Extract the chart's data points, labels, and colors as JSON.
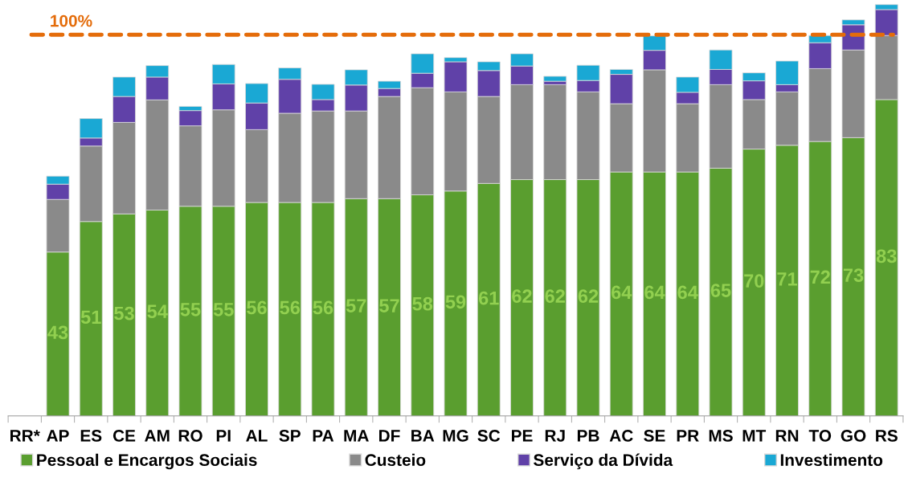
{
  "chart_data": {
    "type": "bar",
    "stacked": true,
    "categories": [
      "RR*",
      "AP",
      "ES",
      "CE",
      "AM",
      "RO",
      "PI",
      "AL",
      "SP",
      "PA",
      "MA",
      "DF",
      "BA",
      "MG",
      "SC",
      "PE",
      "RJ",
      "PB",
      "AC",
      "SE",
      "PR",
      "MS",
      "MT",
      "RN",
      "TO",
      "GO",
      "RS"
    ],
    "series": [
      {
        "name": "Pessoal e Encargos Sociais",
        "color": "#5a9e2f",
        "values": [
          null,
          43,
          51,
          53,
          54,
          55,
          55,
          56,
          56,
          56,
          57,
          57,
          58,
          59,
          61,
          62,
          62,
          62,
          64,
          64,
          64,
          65,
          70,
          71,
          72,
          73,
          83
        ],
        "value_labels": [
          null,
          "43",
          "51",
          "53",
          "54",
          "55",
          "55",
          "56",
          "56",
          "56",
          "57",
          "57",
          "58",
          "59",
          "61",
          "62",
          "62",
          "62",
          "64",
          "64",
          "64",
          "65",
          "70",
          "71",
          "72",
          "73",
          "83"
        ]
      },
      {
        "name": "Custeio",
        "color": "#8a8a8a",
        "values": [
          null,
          13.8,
          19.8,
          24.0,
          28.9,
          21.1,
          25.3,
          19.1,
          23.4,
          24.0,
          23.0,
          26.8,
          28.1,
          26.0,
          22.8,
          24.9,
          24.9,
          23.0,
          17.9,
          26.8,
          17.9,
          21.9,
          13.0,
          14.0,
          19.1,
          23.0,
          16.8
        ]
      },
      {
        "name": "Serviço da Dívida",
        "color": "#6041a8",
        "values": [
          null,
          4.0,
          2.1,
          6.8,
          6.0,
          4.0,
          6.8,
          7.0,
          8.9,
          3.0,
          6.8,
          2.1,
          3.8,
          7.9,
          6.8,
          4.9,
          0.9,
          3.0,
          7.7,
          5.1,
          3.0,
          4.0,
          4.9,
          1.9,
          6.8,
          6.6,
          6.8
        ]
      },
      {
        "name": "Investimento",
        "color": "#1aa8d4",
        "values": [
          null,
          2.1,
          5.1,
          5.1,
          3.0,
          1.1,
          5.1,
          5.1,
          3.0,
          4.0,
          4.0,
          1.9,
          5.1,
          1.1,
          2.3,
          3.2,
          1.3,
          4.0,
          1.3,
          3.8,
          4.0,
          5.1,
          2.1,
          6.2,
          1.9,
          1.3,
          1.3
        ]
      }
    ],
    "tick_labels": "x",
    "grid": false,
    "legend": "bottom",
    "ref_lines": [
      {
        "axis": "y",
        "value": 100,
        "label": "100%",
        "color": "#e46c0a",
        "line_style": "dashed"
      }
    ]
  }
}
